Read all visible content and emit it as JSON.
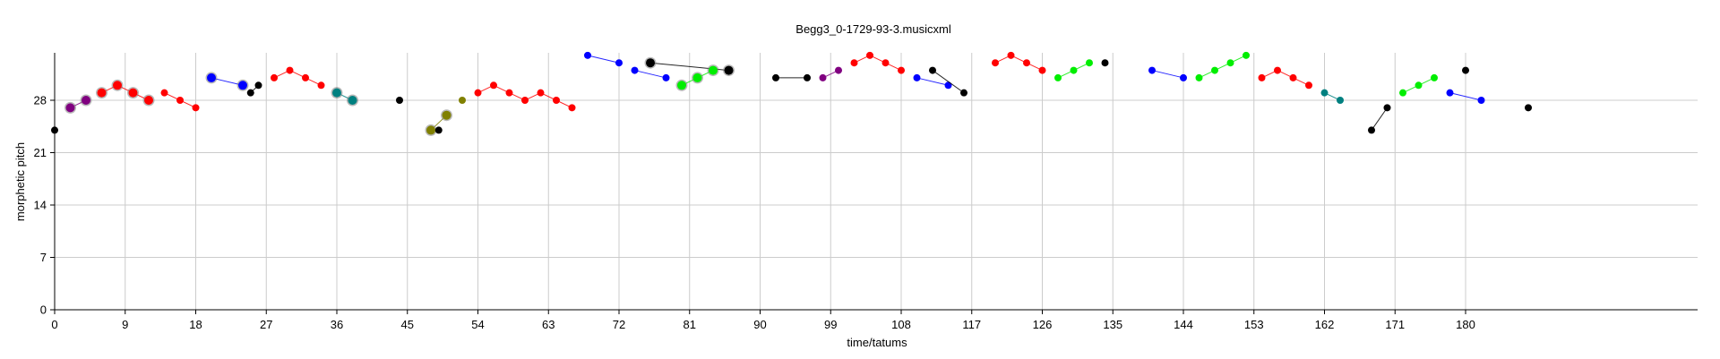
{
  "chart_data": {
    "type": "scatter",
    "title": "Begg3_0-1729-93-3.musicxml",
    "xlabel": "time/tatums",
    "ylabel": "morphetic pitch",
    "xlim": [
      0,
      188
    ],
    "ylim": [
      0,
      34
    ],
    "xticks": [
      0,
      9,
      18,
      27,
      36,
      45,
      54,
      63,
      72,
      81,
      90,
      99,
      108,
      117,
      126,
      135,
      144,
      153,
      162,
      171,
      180
    ],
    "yticks": [
      0,
      7,
      14,
      21,
      28
    ],
    "grid": true,
    "colors": {
      "red": "#ff0000",
      "blue": "#0000ff",
      "green": "#00ee00",
      "teal": "#008080",
      "purple": "#800080",
      "olive": "#808000",
      "black": "#000000",
      "gray": "#808080"
    },
    "series": [
      {
        "color": "black",
        "points": [
          [
            0,
            24
          ]
        ]
      },
      {
        "color": "purple",
        "emphasis": true,
        "points": [
          [
            2,
            27
          ],
          [
            4,
            28
          ]
        ]
      },
      {
        "color": "red",
        "emphasis": true,
        "points": [
          [
            6,
            29
          ],
          [
            8,
            30
          ],
          [
            10,
            29
          ],
          [
            12,
            28
          ]
        ]
      },
      {
        "color": "red",
        "points": [
          [
            14,
            29
          ],
          [
            16,
            28
          ],
          [
            18,
            27
          ]
        ]
      },
      {
        "color": "blue",
        "emphasis": true,
        "points": [
          [
            20,
            31
          ],
          [
            24,
            30
          ]
        ]
      },
      {
        "color": "black",
        "points": [
          [
            25,
            29
          ],
          [
            26,
            30
          ]
        ]
      },
      {
        "color": "red",
        "points": [
          [
            28,
            31
          ],
          [
            30,
            32
          ],
          [
            32,
            31
          ],
          [
            34,
            30
          ]
        ]
      },
      {
        "color": "teal",
        "emphasis": true,
        "points": [
          [
            36,
            29
          ],
          [
            38,
            28
          ]
        ]
      },
      {
        "color": "black",
        "points": [
          [
            44,
            28
          ]
        ]
      },
      {
        "color": "olive",
        "emphasis": true,
        "points": [
          [
            48,
            24
          ],
          [
            50,
            26
          ]
        ]
      },
      {
        "color": "olive",
        "points": [
          [
            52,
            28
          ]
        ]
      },
      {
        "color": "black",
        "points": [
          [
            49,
            24
          ]
        ]
      },
      {
        "color": "red",
        "points": [
          [
            54,
            29
          ],
          [
            56,
            30
          ],
          [
            58,
            29
          ],
          [
            60,
            28
          ],
          [
            62,
            29
          ],
          [
            64,
            28
          ],
          [
            66,
            27
          ]
        ]
      },
      {
        "color": "blue",
        "points": [
          [
            68,
            34
          ],
          [
            72,
            33
          ]
        ]
      },
      {
        "color": "blue",
        "points": [
          [
            74,
            32
          ],
          [
            78,
            31
          ]
        ]
      },
      {
        "color": "black",
        "emphasis": true,
        "points": [
          [
            76,
            33
          ],
          [
            86,
            32
          ]
        ]
      },
      {
        "color": "green",
        "emphasis": true,
        "points": [
          [
            80,
            30
          ],
          [
            82,
            31
          ],
          [
            84,
            32
          ]
        ]
      },
      {
        "color": "black",
        "points": [
          [
            92,
            31
          ],
          [
            96,
            31
          ]
        ]
      },
      {
        "color": "purple",
        "points": [
          [
            98,
            31
          ],
          [
            100,
            32
          ]
        ]
      },
      {
        "color": "red",
        "points": [
          [
            102,
            33
          ],
          [
            104,
            34
          ],
          [
            106,
            33
          ],
          [
            108,
            32
          ]
        ]
      },
      {
        "color": "blue",
        "points": [
          [
            110,
            31
          ],
          [
            114,
            30
          ]
        ]
      },
      {
        "color": "black",
        "points": [
          [
            112,
            32
          ],
          [
            116,
            29
          ]
        ]
      },
      {
        "color": "red",
        "points": [
          [
            120,
            33
          ],
          [
            122,
            34
          ],
          [
            124,
            33
          ],
          [
            126,
            32
          ]
        ]
      },
      {
        "color": "green",
        "points": [
          [
            128,
            31
          ],
          [
            130,
            32
          ],
          [
            132,
            33
          ]
        ]
      },
      {
        "color": "black",
        "points": [
          [
            134,
            33
          ]
        ]
      },
      {
        "color": "blue",
        "points": [
          [
            140,
            32
          ],
          [
            144,
            31
          ]
        ]
      },
      {
        "color": "green",
        "points": [
          [
            146,
            31
          ],
          [
            148,
            32
          ],
          [
            150,
            33
          ],
          [
            152,
            34
          ]
        ]
      },
      {
        "color": "red",
        "points": [
          [
            154,
            31
          ],
          [
            156,
            32
          ],
          [
            158,
            31
          ],
          [
            160,
            30
          ]
        ]
      },
      {
        "color": "teal",
        "points": [
          [
            162,
            29
          ],
          [
            164,
            28
          ]
        ]
      },
      {
        "color": "black",
        "points": [
          [
            168,
            24
          ],
          [
            170,
            27
          ]
        ]
      },
      {
        "color": "green",
        "points": [
          [
            172,
            29
          ],
          [
            174,
            30
          ],
          [
            176,
            31
          ]
        ]
      },
      {
        "color": "black",
        "points": [
          [
            180,
            32
          ]
        ]
      },
      {
        "color": "blue",
        "points": [
          [
            178,
            29
          ],
          [
            182,
            28
          ]
        ]
      },
      {
        "color": "black",
        "points": [
          [
            188,
            27
          ]
        ]
      }
    ]
  }
}
